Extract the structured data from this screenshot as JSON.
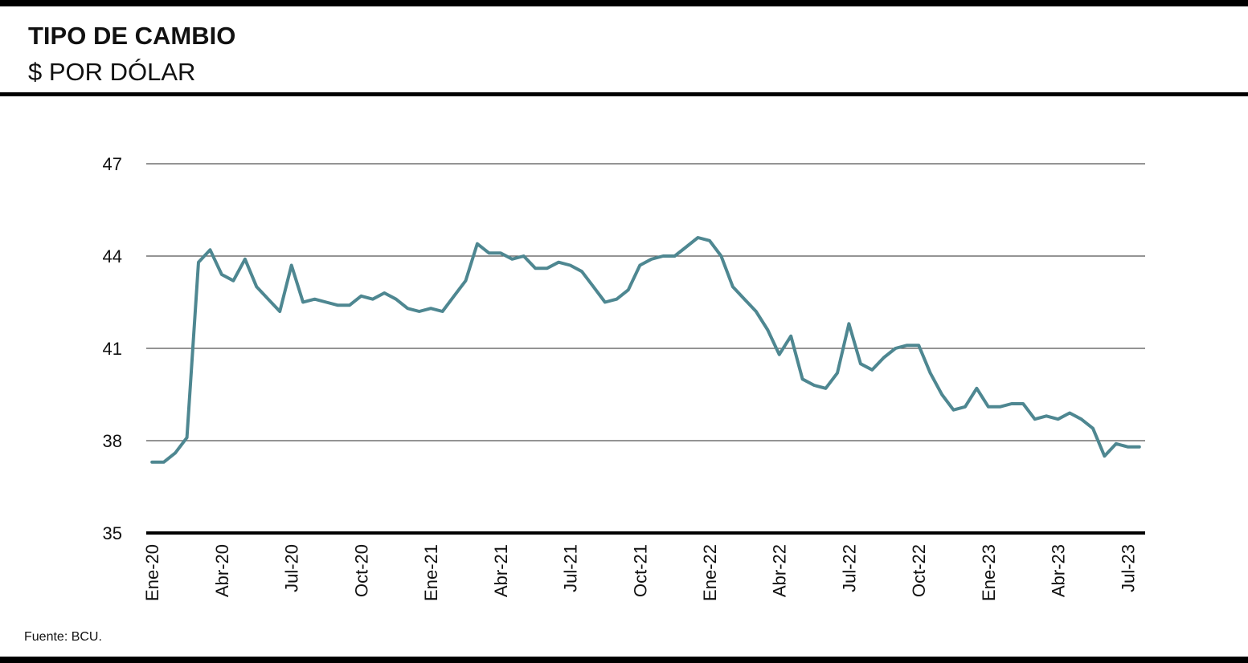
{
  "chart_data": {
    "type": "line",
    "title": "TIPO DE CAMBIO",
    "subtitle": "$ POR DÓLAR",
    "source": "Fuente: BCU.",
    "categories": [
      "Ene-20",
      null,
      null,
      null,
      null,
      null,
      "Abr-20",
      null,
      null,
      null,
      null,
      null,
      "Jul-20",
      null,
      null,
      null,
      null,
      null,
      "Oct-20",
      null,
      null,
      null,
      null,
      null,
      "Ene-21",
      null,
      null,
      null,
      null,
      null,
      "Abr-21",
      null,
      null,
      null,
      null,
      null,
      "Jul-21",
      null,
      null,
      null,
      null,
      null,
      "Oct-21",
      null,
      null,
      null,
      null,
      null,
      "Ene-22",
      null,
      null,
      null,
      null,
      null,
      "Abr-22",
      null,
      null,
      null,
      null,
      null,
      "Jul-22",
      null,
      null,
      null,
      null,
      null,
      "Oct-22",
      null,
      null,
      null,
      null,
      null,
      "Ene-23",
      null,
      null,
      null,
      null,
      null,
      "Abr-23",
      null,
      null,
      null,
      null,
      null,
      "Jul-23",
      null
    ],
    "values": [
      37.3,
      37.3,
      37.6,
      38.1,
      43.8,
      44.2,
      43.4,
      43.2,
      43.9,
      43.0,
      42.6,
      42.2,
      43.7,
      42.5,
      42.6,
      42.5,
      42.4,
      42.4,
      42.7,
      42.6,
      42.8,
      42.6,
      42.3,
      42.2,
      42.3,
      42.2,
      42.7,
      43.2,
      44.4,
      44.1,
      44.1,
      43.9,
      44.0,
      43.6,
      43.6,
      43.8,
      43.7,
      43.5,
      43.0,
      42.5,
      42.6,
      42.9,
      43.7,
      43.9,
      44.0,
      44.0,
      44.3,
      44.6,
      44.5,
      44.0,
      43.0,
      42.6,
      42.2,
      41.6,
      40.8,
      41.4,
      40.0,
      39.8,
      39.7,
      40.2,
      41.8,
      40.5,
      40.3,
      40.7,
      41.0,
      41.1,
      41.1,
      40.2,
      39.5,
      39.0,
      39.1,
      39.7,
      39.1,
      39.1,
      39.2,
      39.2,
      38.7,
      38.8,
      38.7,
      38.9,
      38.7,
      38.4,
      37.5,
      37.9,
      37.8,
      37.8
    ],
    "color": "#4e8791",
    "ylim": [
      35,
      47
    ],
    "yticks": [
      35,
      38,
      41,
      44,
      47
    ],
    "grid": true
  }
}
